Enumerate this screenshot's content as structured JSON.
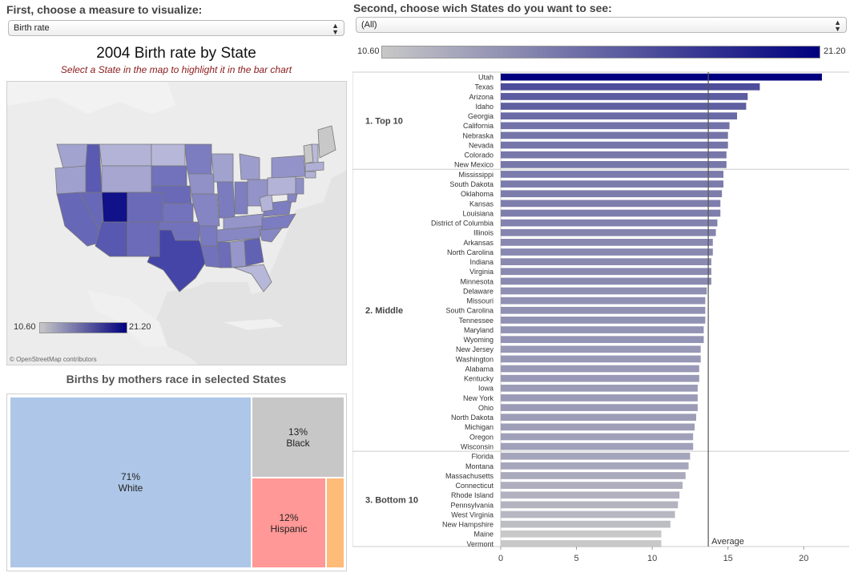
{
  "controls": {
    "measure_prompt": "First, choose a measure to visualize:",
    "measure_value": "Birth rate",
    "states_prompt": "Second, choose wich States do you want to see:",
    "states_value": "(All)"
  },
  "legend": {
    "min": "10.60",
    "max": "21.20"
  },
  "map": {
    "title": "2004 Birth rate by State",
    "subtitle": "Select a State in the map to highlight it in the bar chart",
    "attribution": "© OpenStreetMap contributors",
    "legend_min": "10.60",
    "legend_max": "21.20"
  },
  "treemap": {
    "title": "Births by mothers race in selected States",
    "cells": [
      {
        "pct": "71%",
        "label": "White",
        "color": "#aec7e8"
      },
      {
        "pct": "13%",
        "label": "Black",
        "color": "#c7c7c7"
      },
      {
        "pct": "12%",
        "label": "Hispanic",
        "color": "#ff9896"
      },
      {
        "pct": "",
        "label": "",
        "color": "#ffbb78"
      }
    ]
  },
  "colors": {
    "low": "#c8c8c8",
    "high": "#00007f",
    "average_line": "#555555"
  },
  "chart_data": {
    "type": "bar",
    "orientation": "horizontal",
    "xlim": [
      0,
      23
    ],
    "xticks": [
      0,
      5,
      10,
      15,
      20
    ],
    "reference_line": {
      "label": "Average",
      "value": 13.7
    },
    "groups": [
      {
        "name": "1. Top 10",
        "states": [
          "Utah",
          "Texas",
          "Arizona",
          "Idaho",
          "Georgia",
          "California",
          "Nebraska",
          "Nevada",
          "Colorado",
          "New Mexico"
        ],
        "values": [
          21.2,
          17.1,
          16.3,
          16.2,
          15.6,
          15.1,
          15.0,
          15.0,
          14.9,
          14.9
        ]
      },
      {
        "name": "2. Middle",
        "states": [
          "Mississippi",
          "South Dakota",
          "Oklahoma",
          "Kansas",
          "Louisiana",
          "District of Columbia",
          "Illinois",
          "Arkansas",
          "North Carolina",
          "Indiana",
          "Virginia",
          "Minnesota",
          "Delaware",
          "Missouri",
          "South Carolina",
          "Tennessee",
          "Maryland",
          "Wyoming",
          "New Jersey",
          "Washington",
          "Alabama",
          "Kentucky",
          "Iowa",
          "New York",
          "Ohio",
          "North Dakota",
          "Michigan",
          "Oregon",
          "Wisconsin"
        ],
        "values": [
          14.7,
          14.7,
          14.6,
          14.5,
          14.5,
          14.3,
          14.2,
          14.0,
          14.0,
          13.9,
          13.9,
          13.9,
          13.6,
          13.5,
          13.5,
          13.5,
          13.4,
          13.4,
          13.2,
          13.2,
          13.1,
          13.1,
          13.0,
          13.0,
          13.0,
          12.9,
          12.8,
          12.7,
          12.7
        ]
      },
      {
        "name": "3. Bottom 10",
        "states": [
          "Florida",
          "Montana",
          "Massachusetts",
          "Connecticut",
          "Rhode Island",
          "Pennsylvania",
          "West Virginia",
          "New Hampshire",
          "Maine",
          "Vermont"
        ],
        "values": [
          12.5,
          12.4,
          12.2,
          12.0,
          11.8,
          11.7,
          11.5,
          11.2,
          10.6,
          10.6
        ]
      }
    ]
  }
}
